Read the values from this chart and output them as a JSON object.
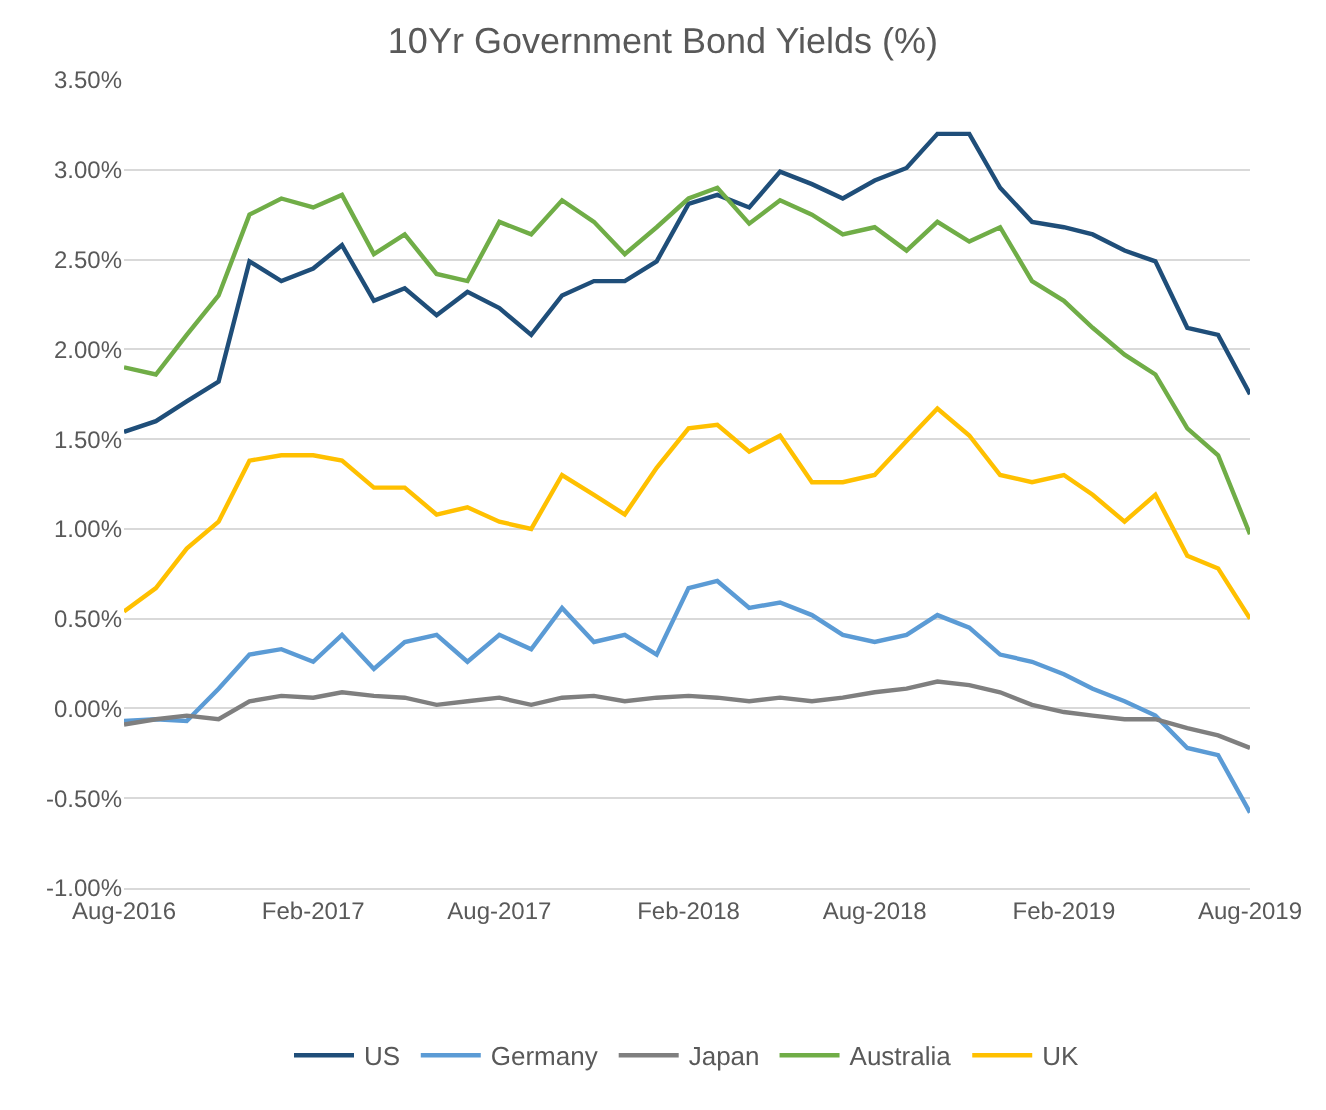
{
  "chart_data": {
    "type": "line",
    "title": "10Yr Government Bond Yields (%)",
    "x": [
      "2016-08",
      "2016-09",
      "2016-10",
      "2016-11",
      "2016-12",
      "2017-01",
      "2017-02",
      "2017-03",
      "2017-04",
      "2017-05",
      "2017-06",
      "2017-07",
      "2017-08",
      "2017-09",
      "2017-10",
      "2017-11",
      "2017-12",
      "2018-01",
      "2018-02",
      "2018-03",
      "2018-04",
      "2018-05",
      "2018-06",
      "2018-07",
      "2018-08",
      "2018-09",
      "2018-10",
      "2018-11",
      "2018-12",
      "2019-01",
      "2019-02",
      "2019-03",
      "2019-04",
      "2019-05",
      "2019-06",
      "2019-07",
      "2019-08"
    ],
    "series": [
      {
        "name": "US",
        "color": "#1f4e79",
        "values": [
          1.54,
          1.6,
          1.71,
          1.82,
          2.49,
          2.38,
          2.45,
          2.58,
          2.27,
          2.34,
          2.19,
          2.32,
          2.23,
          2.08,
          2.3,
          2.38,
          2.38,
          2.49,
          2.81,
          2.86,
          2.79,
          2.99,
          2.92,
          2.84,
          2.94,
          3.01,
          3.2,
          3.2,
          2.9,
          2.71,
          2.68,
          2.64,
          2.55,
          2.49,
          2.12,
          2.08,
          1.75
        ]
      },
      {
        "name": "Germany",
        "color": "#5b9bd5",
        "values": [
          -0.07,
          -0.06,
          -0.07,
          0.11,
          0.3,
          0.33,
          0.26,
          0.41,
          0.22,
          0.37,
          0.41,
          0.26,
          0.41,
          0.33,
          0.56,
          0.37,
          0.41,
          0.3,
          0.67,
          0.71,
          0.56,
          0.59,
          0.52,
          0.41,
          0.37,
          0.41,
          0.52,
          0.45,
          0.3,
          0.26,
          0.19,
          0.11,
          0.04,
          -0.04,
          -0.22,
          -0.26,
          -0.58
        ]
      },
      {
        "name": "Japan",
        "color": "#7f7f7f",
        "values": [
          -0.09,
          -0.06,
          -0.04,
          -0.06,
          0.04,
          0.07,
          0.06,
          0.09,
          0.07,
          0.06,
          0.02,
          0.04,
          0.06,
          0.02,
          0.06,
          0.07,
          0.04,
          0.06,
          0.07,
          0.06,
          0.04,
          0.06,
          0.04,
          0.06,
          0.09,
          0.11,
          0.15,
          0.13,
          0.09,
          0.02,
          -0.02,
          -0.04,
          -0.06,
          -0.06,
          -0.11,
          -0.15,
          -0.22
        ]
      },
      {
        "name": "Australia",
        "color": "#70ad47",
        "values": [
          1.9,
          1.86,
          2.08,
          2.3,
          2.75,
          2.84,
          2.79,
          2.86,
          2.53,
          2.64,
          2.42,
          2.38,
          2.71,
          2.64,
          2.83,
          2.71,
          2.53,
          2.68,
          2.84,
          2.9,
          2.7,
          2.83,
          2.75,
          2.64,
          2.68,
          2.55,
          2.71,
          2.6,
          2.68,
          2.38,
          2.27,
          2.12,
          1.97,
          1.86,
          1.56,
          1.41,
          0.97
        ]
      },
      {
        "name": "UK",
        "color": "#ffc000",
        "values": [
          0.54,
          0.67,
          0.89,
          1.04,
          1.38,
          1.41,
          1.41,
          1.38,
          1.23,
          1.23,
          1.08,
          1.12,
          1.04,
          1.0,
          1.3,
          1.19,
          1.08,
          1.34,
          1.56,
          1.58,
          1.43,
          1.52,
          1.26,
          1.26,
          1.3,
          1.49,
          1.67,
          1.52,
          1.3,
          1.26,
          1.3,
          1.19,
          1.04,
          1.19,
          0.85,
          0.78,
          0.5
        ]
      }
    ],
    "xlim": [
      "2016-08",
      "2019-08"
    ],
    "xticks": [
      {
        "value": "2016-08",
        "label": "Aug-2016"
      },
      {
        "value": "2017-02",
        "label": "Feb-2017"
      },
      {
        "value": "2017-08",
        "label": "Aug-2017"
      },
      {
        "value": "2018-02",
        "label": "Feb-2018"
      },
      {
        "value": "2018-08",
        "label": "Aug-2018"
      },
      {
        "value": "2019-02",
        "label": "Feb-2019"
      },
      {
        "value": "2019-08",
        "label": "Aug-2019"
      }
    ],
    "ylim": [
      -1.0,
      3.5
    ],
    "yticks": [
      {
        "value": -1.0,
        "label": "-1.00%"
      },
      {
        "value": -0.5,
        "label": "-0.50%"
      },
      {
        "value": 0,
        "label": "0.00%"
      },
      {
        "value": 0.5,
        "label": "0.50%"
      },
      {
        "value": 1.0,
        "label": "1.00%"
      },
      {
        "value": 1.5,
        "label": "1.50%"
      },
      {
        "value": 2.0,
        "label": "2.00%"
      },
      {
        "value": 2.5,
        "label": "2.50%"
      },
      {
        "value": 3.0,
        "label": "3.00%"
      },
      {
        "value": 3.5,
        "label": "3.50%"
      }
    ],
    "grid": "y",
    "legend": "bottom",
    "line_style": "solid",
    "marker": "none"
  }
}
